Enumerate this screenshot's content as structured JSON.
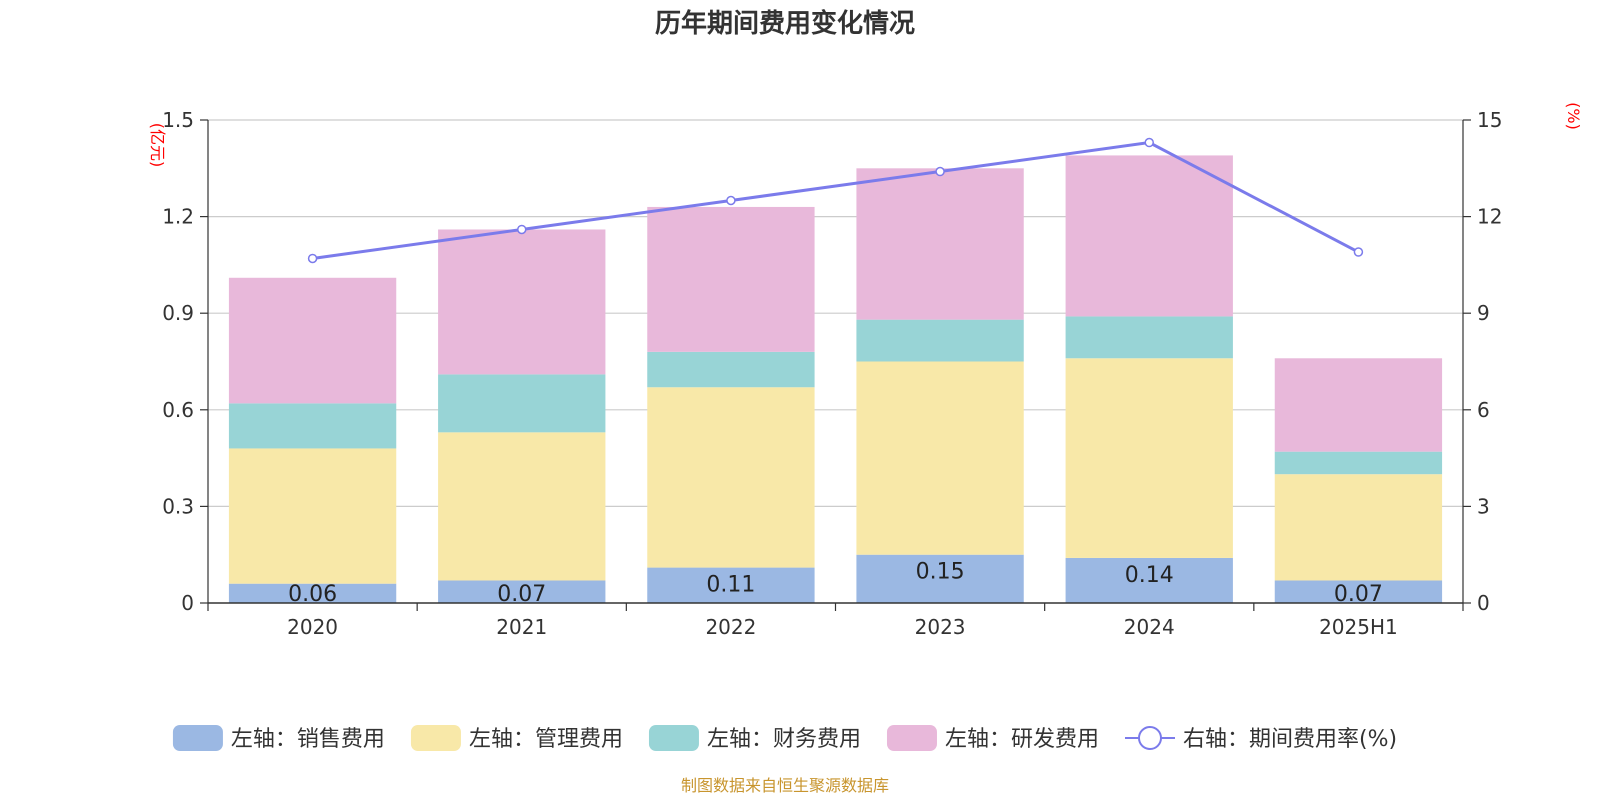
{
  "chart_data": {
    "type": "bar",
    "title": "历年期间费用变化情况",
    "categories": [
      "2020",
      "2021",
      "2022",
      "2023",
      "2024",
      "2025H1"
    ],
    "series": [
      {
        "name": "左轴：销售费用",
        "kind": "bar",
        "axis": "left",
        "color": "#9bb8e3",
        "values": [
          0.06,
          0.07,
          0.11,
          0.15,
          0.14,
          0.07
        ],
        "data_labels": [
          "0.06",
          "0.07",
          "0.11",
          "0.15",
          "0.14",
          "0.07"
        ]
      },
      {
        "name": "左轴：管理费用",
        "kind": "bar",
        "axis": "left",
        "color": "#f8e8a8",
        "values": [
          0.42,
          0.46,
          0.56,
          0.6,
          0.62,
          0.33
        ]
      },
      {
        "name": "左轴：财务费用",
        "kind": "bar",
        "axis": "left",
        "color": "#98d4d6",
        "values": [
          0.14,
          0.18,
          0.11,
          0.13,
          0.13,
          0.07
        ]
      },
      {
        "name": "左轴：研发费用",
        "kind": "bar",
        "axis": "left",
        "color": "#e8b8da",
        "values": [
          0.39,
          0.45,
          0.45,
          0.47,
          0.5,
          0.29
        ]
      },
      {
        "name": "右轴：期间费用率(%)",
        "kind": "line",
        "axis": "right",
        "color": "#7b7beb",
        "values": [
          10.7,
          11.6,
          12.5,
          13.4,
          14.3,
          10.9
        ]
      }
    ],
    "y_left": {
      "unit": "(亿元)",
      "min": 0,
      "max": 1.5,
      "ticks": [
        "0",
        "0.3",
        "0.6",
        "0.9",
        "1.2",
        "1.5"
      ]
    },
    "y_right": {
      "unit": "(%)",
      "min": 0,
      "max": 15,
      "ticks": [
        "0",
        "3",
        "6",
        "9",
        "12",
        "15"
      ]
    },
    "grid": true,
    "legend_position": "bottom",
    "source": "制图数据来自恒生聚源数据库"
  }
}
